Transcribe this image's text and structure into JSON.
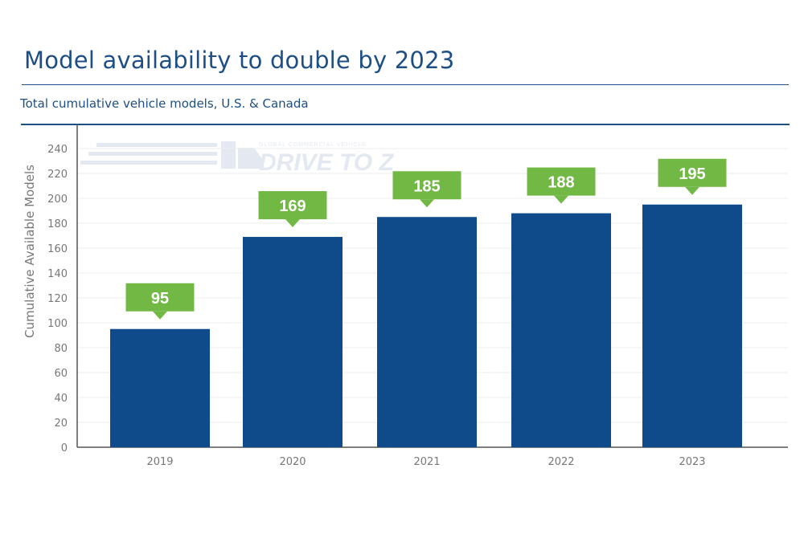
{
  "header": {
    "title": "Model availability to double by 2023",
    "subtitle": "Total cumulative vehicle models, U.S. & Canada"
  },
  "watermark": {
    "small": "GLOBAL COMMERCIAL VEHICLE",
    "large": "DRIVE TO ZERO"
  },
  "colors": {
    "bar": "#0f4a8a",
    "label_bg": "#72b844",
    "label_text": "#ffffff",
    "title": "#1d4f86",
    "axis_text": "#777777",
    "grid": "#eeeeee"
  },
  "chart_data": {
    "type": "bar",
    "categories": [
      "2019",
      "2020",
      "2021",
      "2022",
      "2023"
    ],
    "values": [
      95,
      169,
      185,
      188,
      195
    ],
    "data_labels": [
      "95",
      "169",
      "185",
      "188",
      "195"
    ],
    "ylabel": "Cumulative Available Models",
    "xlabel": "",
    "ylim": [
      0,
      240
    ],
    "yticks": [
      "0",
      "20",
      "40",
      "60",
      "80",
      "100",
      "120",
      "140",
      "160",
      "180",
      "200",
      "220",
      "240"
    ],
    "grid": true,
    "legend": "none"
  }
}
